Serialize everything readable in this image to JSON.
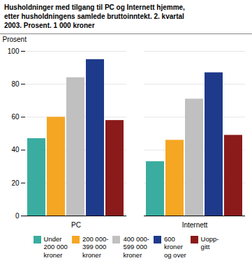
{
  "chart_data": {
    "type": "bar",
    "title": "Husholdninger med tilgang til PC og Internett hjemme,\netter husholdningens samlede bruttoinntekt. 2. kvartal\n2003. Prosent. 1 000 kroner",
    "ylabel": "Prosent",
    "categories": [
      "PC",
      "Internett"
    ],
    "series": [
      {
        "name": "Under\n200 000\nkroner",
        "color": "#3aada0",
        "values": [
          47,
          33
        ]
      },
      {
        "name": "200 000-\n399 000\nkroner",
        "color": "#f5a623",
        "values": [
          60,
          46
        ]
      },
      {
        "name": "400 000-\n599 000\nkroner",
        "color": "#c0c0c0",
        "values": [
          84,
          71
        ]
      },
      {
        "name": "600\nkroner\nog over",
        "color": "#1e3a8a",
        "values": [
          95,
          87
        ]
      },
      {
        "name": "Uopp-\ngitt",
        "color": "#8b1a1a",
        "values": [
          58,
          49
        ]
      }
    ],
    "ylim": [
      0,
      100
    ],
    "yticks": [
      0,
      20,
      40,
      60,
      80,
      100
    ],
    "grid": true,
    "legend": "bottom"
  }
}
